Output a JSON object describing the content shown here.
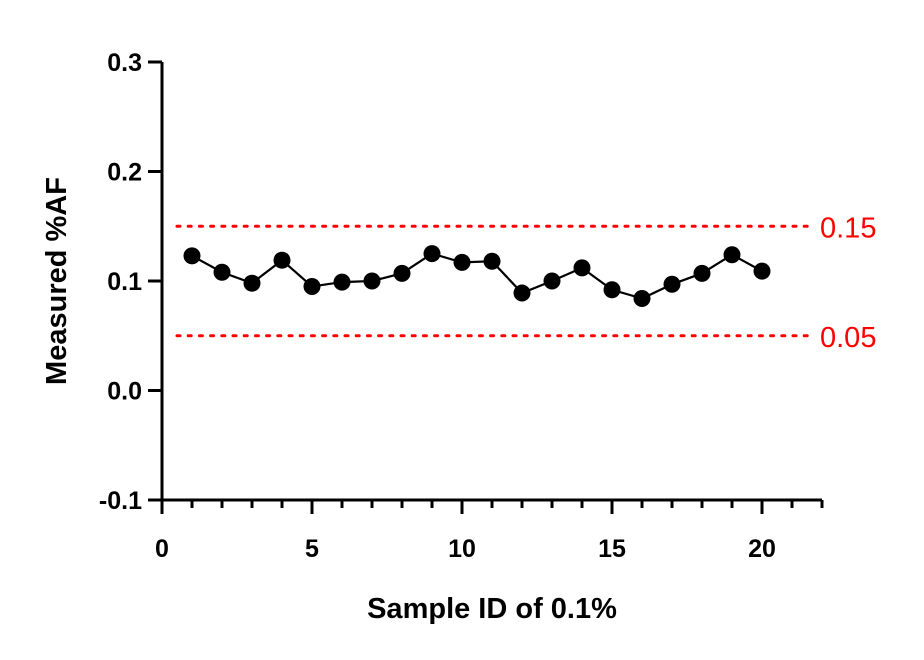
{
  "chart_data": {
    "type": "line",
    "title": "",
    "xlabel": "Sample ID of 0.1%",
    "ylabel": "Measured %AF",
    "xlim": [
      0,
      22
    ],
    "ylim": [
      -0.1,
      0.3
    ],
    "x_ticks": [
      "0",
      "5",
      "10",
      "15",
      "20"
    ],
    "y_ticks": [
      "-0.1",
      "0.0",
      "0.1",
      "0.2",
      "0.3"
    ],
    "grid": false,
    "series": [
      {
        "x": [
          1,
          2,
          3,
          4,
          5,
          6,
          7,
          8,
          9,
          10,
          11,
          12,
          13,
          14,
          15,
          16,
          17,
          18,
          19,
          20
        ],
        "values": [
          0.123,
          0.108,
          0.098,
          0.119,
          0.095,
          0.099,
          0.1,
          0.107,
          0.125,
          0.117,
          0.118,
          0.089,
          0.1,
          0.112,
          0.092,
          0.084,
          0.097,
          0.107,
          0.124,
          0.109
        ],
        "color": "#000000",
        "marker": "circle"
      }
    ],
    "reference_lines": [
      {
        "y": 0.15,
        "label": "0.15",
        "color": "#ff0000",
        "style": "dotted"
      },
      {
        "y": 0.05,
        "label": "0.05",
        "color": "#ff0000",
        "style": "dotted"
      }
    ]
  }
}
